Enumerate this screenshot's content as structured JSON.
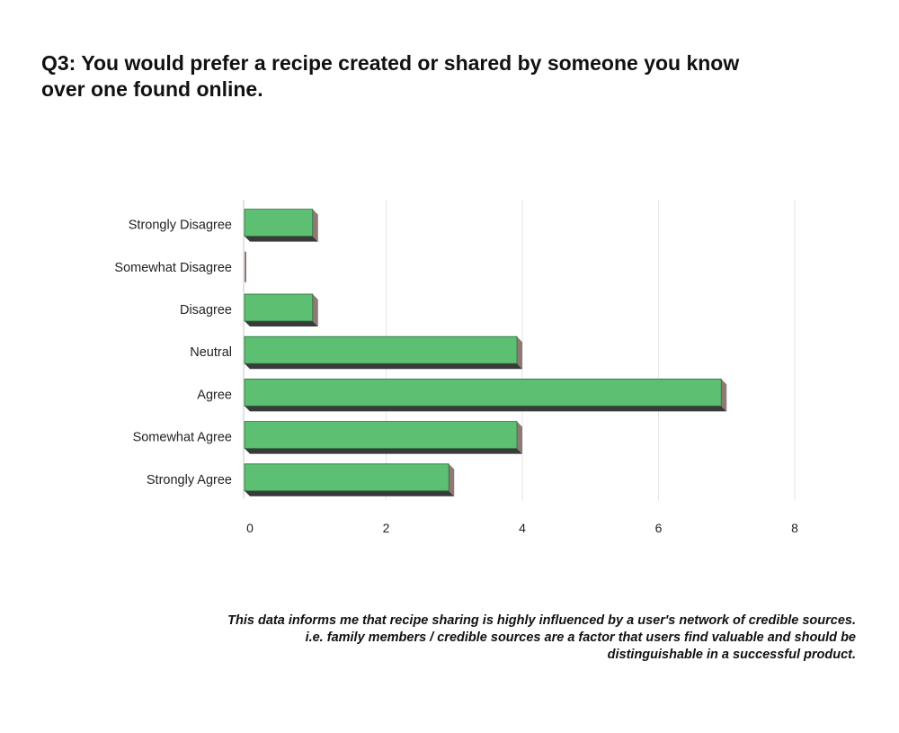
{
  "title": "Q3:  You would prefer a recipe created or shared by someone you know\nover one found online.",
  "footnote": "This data informs me that recipe sharing is highly influenced by a user's network of credible sources.\ni.e. family members / credible sources are a factor that users find valuable and should be\ndistinguishable in a successful product.",
  "chart_data": {
    "type": "bar",
    "orientation": "horizontal",
    "title": "",
    "xlabel": "",
    "ylabel": "",
    "categories": [
      "Strongly Disagree",
      "Somewhat Disagree",
      "Disagree",
      "Neutral",
      "Agree",
      "Somewhat Agree",
      "Strongly Agree"
    ],
    "values": [
      1,
      0,
      1,
      4,
      7,
      4,
      3
    ],
    "xlim": [
      0,
      8
    ],
    "xticks": [
      0,
      2,
      4,
      6,
      8
    ],
    "grid": true,
    "legend": "none",
    "colors": {
      "bar": "#5cbf72",
      "bar_side": "#8d7a74",
      "bar_shadow": "#3a3a3a",
      "grid": "#e6e6e6"
    }
  }
}
